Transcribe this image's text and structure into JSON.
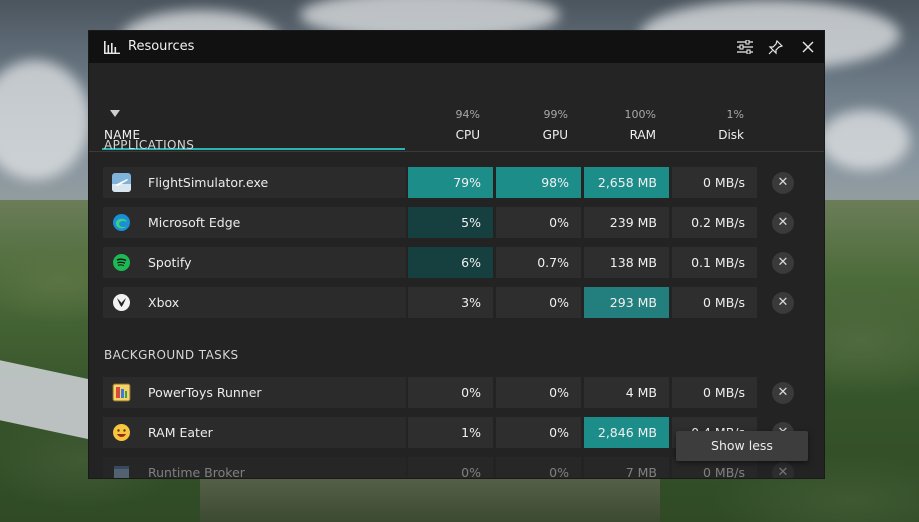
{
  "window": {
    "title": "Resources"
  },
  "header": {
    "name_label": "NAME",
    "columns": [
      {
        "pct": "94%",
        "label": "CPU"
      },
      {
        "pct": "99%",
        "label": "GPU"
      },
      {
        "pct": "100%",
        "label": "RAM"
      },
      {
        "pct": "1%",
        "label": "Disk"
      }
    ]
  },
  "sections": {
    "applications": "APPLICATIONS",
    "background": "BACKGROUND TASKS"
  },
  "rows": [
    {
      "name": "FlightSimulator.exe",
      "cpu": "79%",
      "gpu": "98%",
      "ram": "2,658 MB",
      "disk": "0 MB/s",
      "icon": "flight-simulator-icon"
    },
    {
      "name": "Microsoft Edge",
      "cpu": "5%",
      "gpu": "0%",
      "ram": "239 MB",
      "disk": "0.2 MB/s",
      "icon": "edge-icon"
    },
    {
      "name": "Spotify",
      "cpu": "6%",
      "gpu": "0.7%",
      "ram": "138 MB",
      "disk": "0.1 MB/s",
      "icon": "spotify-icon"
    },
    {
      "name": "Xbox",
      "cpu": "3%",
      "gpu": "0%",
      "ram": "293 MB",
      "disk": "0 MB/s",
      "icon": "xbox-icon"
    },
    {
      "name": "PowerToys Runner",
      "cpu": "0%",
      "gpu": "0%",
      "ram": "4 MB",
      "disk": "0 MB/s",
      "icon": "powertoys-icon"
    },
    {
      "name": "RAM Eater",
      "cpu": "1%",
      "gpu": "0%",
      "ram": "2,846 MB",
      "disk": "0.4 MB/s",
      "icon": "smiley-icon"
    },
    {
      "name": "Runtime Broker",
      "cpu": "0%",
      "gpu": "0%",
      "ram": "7 MB",
      "disk": "0 MB/s",
      "icon": "runtime-broker-icon"
    }
  ],
  "close_glyph": "✕",
  "toast": {
    "label": "Show less"
  },
  "colors": {
    "accent": "#2bb3b0",
    "highlight": "#1d8d8a",
    "highlight_dark": "#163f40"
  }
}
